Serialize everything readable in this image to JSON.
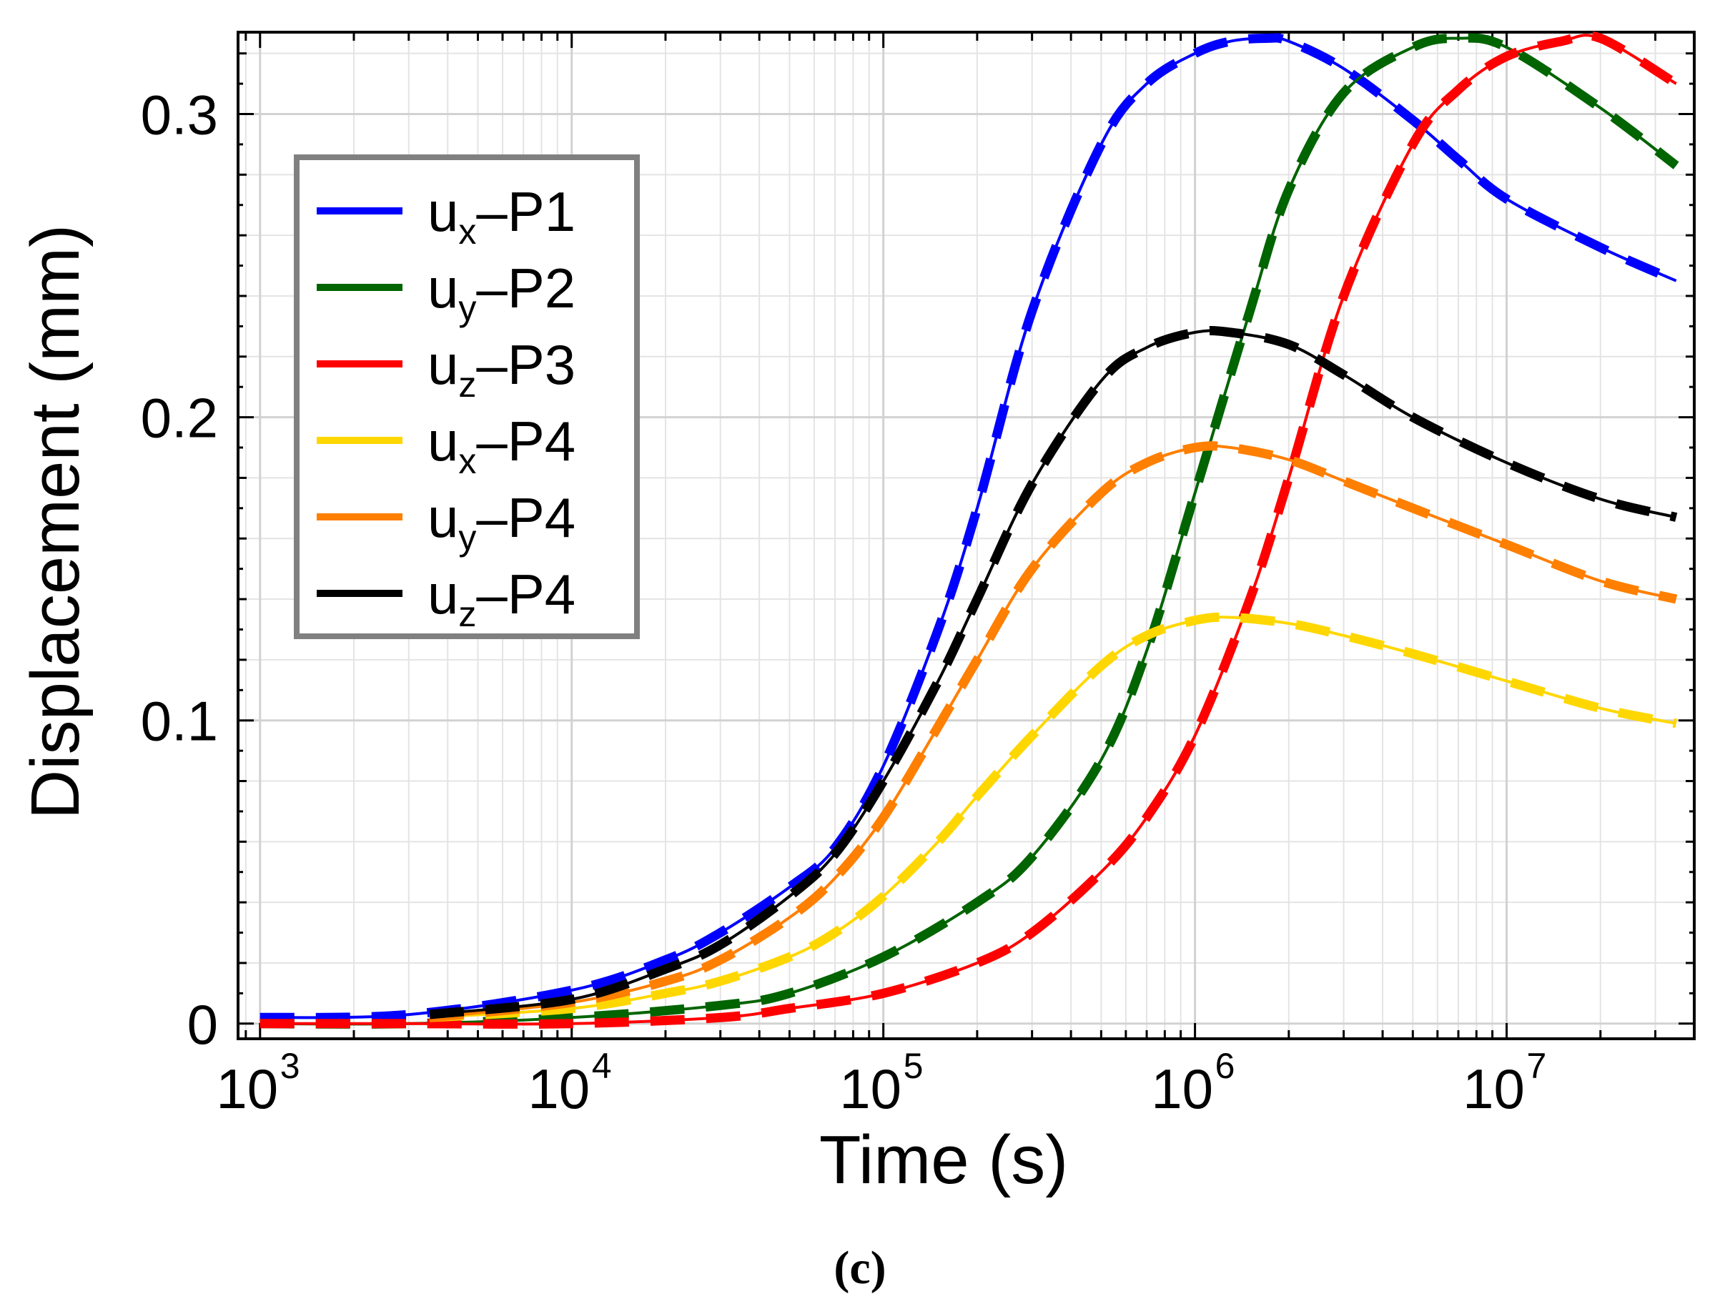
{
  "caption": "(c)",
  "chart_data": {
    "type": "line",
    "title": "",
    "xlabel": "Time (s)",
    "ylabel": "Displacement (mm)",
    "xscale": "log",
    "xlim": [
      850,
      40000000
    ],
    "ylim": [
      -0.005,
      0.327
    ],
    "grid": true,
    "legend_position": "top-left",
    "x_ticks": [
      {
        "base": "10",
        "exp": "3",
        "value": 1000
      },
      {
        "base": "10",
        "exp": "4",
        "value": 10000
      },
      {
        "base": "10",
        "exp": "5",
        "value": 100000
      },
      {
        "base": "10",
        "exp": "6",
        "value": 1000000
      },
      {
        "base": "10",
        "exp": "7",
        "value": 10000000
      }
    ],
    "y_ticks": [
      {
        "label": "0",
        "value": 0
      },
      {
        "label": "0.1",
        "value": 0.1
      },
      {
        "label": "0.2",
        "value": 0.2
      },
      {
        "label": "0.3",
        "value": 0.3
      }
    ],
    "series": [
      {
        "name": "ux–P1",
        "var": "u",
        "sub": "x",
        "point": "–P1",
        "color": "#0000ff",
        "x": [
          1000,
          3000,
          10000,
          20000,
          30000,
          50000,
          70000,
          100000,
          150000,
          200000,
          300000,
          500000,
          700000,
          1000000,
          1300000,
          1700000,
          2000000,
          3000000,
          5000000,
          7000000,
          10000000,
          20000000,
          35000000
        ],
        "y": [
          0.002,
          0.003,
          0.011,
          0.021,
          0.03,
          0.045,
          0.058,
          0.085,
          0.13,
          0.17,
          0.235,
          0.29,
          0.31,
          0.32,
          0.324,
          0.325,
          0.324,
          0.315,
          0.298,
          0.285,
          0.272,
          0.256,
          0.245
        ]
      },
      {
        "name": "uy–P2",
        "var": "u",
        "sub": "y",
        "point": "–P2",
        "color": "#006400",
        "x": [
          1000,
          3000,
          10000,
          30000,
          50000,
          100000,
          200000,
          300000,
          500000,
          700000,
          1000000,
          1500000,
          2000000,
          3000000,
          5000000,
          7000000,
          10000000,
          20000000,
          35000000
        ],
        "y": [
          0.0,
          0.0,
          0.002,
          0.006,
          0.01,
          0.022,
          0.04,
          0.055,
          0.087,
          0.123,
          0.175,
          0.235,
          0.275,
          0.307,
          0.322,
          0.325,
          0.322,
          0.302,
          0.283
        ]
      },
      {
        "name": "uz–P3",
        "var": "u",
        "sub": "z",
        "point": "–P3",
        "color": "#ff0000",
        "x": [
          1000,
          3000,
          10000,
          30000,
          50000,
          100000,
          200000,
          300000,
          500000,
          700000,
          1000000,
          1500000,
          2000000,
          3000000,
          5000000,
          7000000,
          10000000,
          15000000,
          20000000,
          35000000
        ],
        "y": [
          0.0,
          0.0,
          0.0,
          0.002,
          0.005,
          0.01,
          0.02,
          0.03,
          0.05,
          0.068,
          0.095,
          0.14,
          0.18,
          0.24,
          0.29,
          0.308,
          0.319,
          0.324,
          0.325,
          0.31
        ]
      },
      {
        "name": "ux–P4",
        "var": "u",
        "sub": "x",
        "point": "–P4",
        "color": "#ffd700",
        "x": [
          3500,
          10000,
          20000,
          30000,
          50000,
          70000,
          100000,
          150000,
          200000,
          300000,
          500000,
          700000,
          1000000,
          1300000,
          2000000,
          3000000,
          5000000,
          10000000,
          20000000,
          35000000
        ],
        "y": [
          0.002,
          0.005,
          0.01,
          0.014,
          0.022,
          0.03,
          0.042,
          0.06,
          0.075,
          0.095,
          0.118,
          0.128,
          0.133,
          0.134,
          0.132,
          0.128,
          0.122,
          0.113,
          0.104,
          0.099
        ]
      },
      {
        "name": "uy–P4",
        "var": "u",
        "sub": "y",
        "point": "–P4",
        "color": "#ff7f00",
        "x": [
          3500,
          10000,
          20000,
          30000,
          50000,
          70000,
          100000,
          150000,
          200000,
          300000,
          500000,
          700000,
          1000000,
          1300000,
          2000000,
          3000000,
          5000000,
          10000000,
          20000000,
          35000000
        ],
        "y": [
          0.002,
          0.007,
          0.014,
          0.021,
          0.035,
          0.048,
          0.068,
          0.098,
          0.12,
          0.15,
          0.175,
          0.185,
          0.19,
          0.19,
          0.186,
          0.179,
          0.17,
          0.158,
          0.146,
          0.14
        ]
      },
      {
        "name": "uz–P4",
        "var": "u",
        "sub": "z",
        "point": "–P4",
        "color": "#000000",
        "x": [
          3500,
          10000,
          20000,
          30000,
          50000,
          70000,
          100000,
          150000,
          200000,
          300000,
          500000,
          700000,
          1000000,
          1300000,
          2000000,
          3000000,
          5000000,
          10000000,
          20000000,
          35000000
        ],
        "y": [
          0.003,
          0.008,
          0.018,
          0.026,
          0.042,
          0.056,
          0.08,
          0.113,
          0.14,
          0.178,
          0.212,
          0.223,
          0.228,
          0.228,
          0.224,
          0.214,
          0.2,
          0.185,
          0.173,
          0.167
        ]
      }
    ]
  }
}
